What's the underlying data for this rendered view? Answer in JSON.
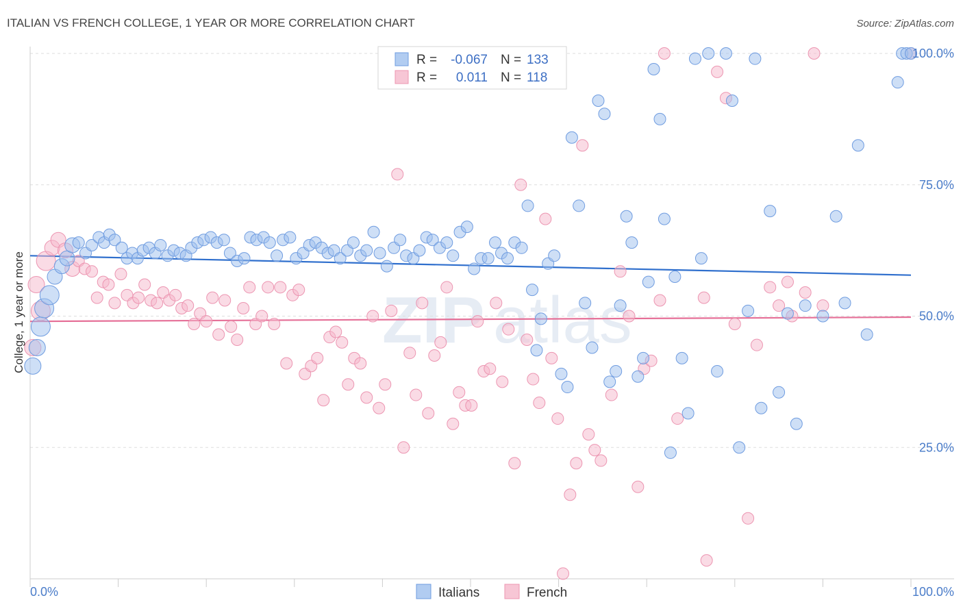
{
  "title": "ITALIAN VS FRENCH COLLEGE, 1 YEAR OR MORE CORRELATION CHART",
  "source": "Source: ZipAtlas.com",
  "watermark": {
    "zip": "ZIP",
    "atlas": "atlas"
  },
  "colors": {
    "italians_fill": "#9dbfee",
    "italians_stroke": "#6f9ce0",
    "italians_line": "#2f6fcd",
    "french_fill": "#f5b8cb",
    "french_stroke": "#ec95b1",
    "french_line": "#e56f97",
    "grid": "#dddddd",
    "axis_label": "#4a7cc9"
  },
  "legend_top": {
    "rows": [
      {
        "r_label": "R =",
        "r_value": "-0.067",
        "n_label": "N =",
        "n_value": "133"
      },
      {
        "r_label": "R =",
        "r_value": "0.011",
        "n_label": "N =",
        "n_value": "118"
      }
    ]
  },
  "chart_data": {
    "type": "scatter",
    "title": "ITALIAN VS FRENCH COLLEGE, 1 YEAR OR MORE CORRELATION CHART",
    "xlabel": "",
    "ylabel": "College, 1 year or more",
    "xlim": [
      0,
      100
    ],
    "ylim": [
      0,
      100
    ],
    "x_tick_labels": [
      "0.0%",
      "100.0%"
    ],
    "y_ticks": [
      25,
      50,
      75,
      100
    ],
    "y_tick_labels": [
      "25.0%",
      "50.0%",
      "75.0%",
      "100.0%"
    ],
    "series": [
      {
        "name": "Italians",
        "R": -0.067,
        "N": 133,
        "trend": {
          "y_at_0": 61.5,
          "y_at_100": 57.8
        },
        "points": [
          [
            0.3,
            40.5
          ],
          [
            0.8,
            44
          ],
          [
            1.2,
            48
          ],
          [
            1.6,
            51.5
          ],
          [
            2.2,
            54
          ],
          [
            2.8,
            57.5
          ],
          [
            3.6,
            59.5
          ],
          [
            4.2,
            61
          ],
          [
            4.8,
            63.5
          ],
          [
            5.5,
            64
          ],
          [
            6.3,
            62
          ],
          [
            7,
            63.5
          ],
          [
            7.8,
            65
          ],
          [
            8.4,
            64
          ],
          [
            9,
            65.5
          ],
          [
            9.6,
            64.5
          ],
          [
            10.4,
            63
          ],
          [
            11,
            61
          ],
          [
            11.6,
            62
          ],
          [
            12.2,
            61
          ],
          [
            12.8,
            62.5
          ],
          [
            13.5,
            63
          ],
          [
            14.2,
            62
          ],
          [
            14.8,
            63.5
          ],
          [
            15.6,
            61.5
          ],
          [
            16.3,
            62.5
          ],
          [
            17,
            62
          ],
          [
            17.7,
            61.5
          ],
          [
            18.3,
            63
          ],
          [
            19,
            64
          ],
          [
            19.7,
            64.5
          ],
          [
            20.5,
            65
          ],
          [
            21.2,
            64
          ],
          [
            22,
            64.5
          ],
          [
            22.7,
            62
          ],
          [
            23.5,
            60.5
          ],
          [
            24.3,
            61
          ],
          [
            25,
            65
          ],
          [
            25.7,
            64.5
          ],
          [
            26.5,
            65
          ],
          [
            27.2,
            64
          ],
          [
            28,
            61.5
          ],
          [
            28.7,
            64.5
          ],
          [
            29.5,
            65
          ],
          [
            30.2,
            61
          ],
          [
            31,
            62
          ],
          [
            31.7,
            63.5
          ],
          [
            32.4,
            64
          ],
          [
            33.1,
            63
          ],
          [
            33.8,
            62
          ],
          [
            34.5,
            62.5
          ],
          [
            35.2,
            61
          ],
          [
            36,
            62.5
          ],
          [
            36.7,
            64
          ],
          [
            37.5,
            61.5
          ],
          [
            38.2,
            62.5
          ],
          [
            39,
            66
          ],
          [
            39.7,
            62
          ],
          [
            40.5,
            59.5
          ],
          [
            41.3,
            63
          ],
          [
            42,
            64.5
          ],
          [
            42.7,
            61.5
          ],
          [
            43.5,
            61
          ],
          [
            44.2,
            62.5
          ],
          [
            45,
            65
          ],
          [
            45.7,
            64.5
          ],
          [
            46.5,
            63
          ],
          [
            47.3,
            64
          ],
          [
            48,
            61.5
          ],
          [
            48.8,
            66
          ],
          [
            49.6,
            67
          ],
          [
            50.4,
            59
          ],
          [
            51.2,
            61
          ],
          [
            52,
            61
          ],
          [
            52.8,
            64
          ],
          [
            53.5,
            62
          ],
          [
            54.2,
            61
          ],
          [
            55,
            64
          ],
          [
            55.8,
            63
          ],
          [
            56.5,
            71
          ],
          [
            57,
            55
          ],
          [
            57.5,
            43.5
          ],
          [
            58,
            49.5
          ],
          [
            58.8,
            60
          ],
          [
            59.5,
            61.5
          ],
          [
            60.3,
            39
          ],
          [
            61,
            36.5
          ],
          [
            61.5,
            84
          ],
          [
            62.3,
            71
          ],
          [
            63,
            52.5
          ],
          [
            63.8,
            44
          ],
          [
            64.5,
            91
          ],
          [
            65.2,
            88.5
          ],
          [
            65.8,
            37.5
          ],
          [
            66.5,
            39.5
          ],
          [
            67,
            52
          ],
          [
            67.7,
            69
          ],
          [
            68.3,
            64
          ],
          [
            69,
            38.5
          ],
          [
            69.6,
            42
          ],
          [
            70.2,
            56.5
          ],
          [
            70.8,
            97
          ],
          [
            71.5,
            87.5
          ],
          [
            72,
            68.5
          ],
          [
            72.7,
            24
          ],
          [
            73.2,
            57.5
          ],
          [
            74,
            42
          ],
          [
            74.7,
            31.5
          ],
          [
            75.5,
            99
          ],
          [
            76.2,
            61
          ],
          [
            77,
            100
          ],
          [
            78,
            39.5
          ],
          [
            79,
            100
          ],
          [
            79.7,
            91
          ],
          [
            80.5,
            25
          ],
          [
            81.5,
            51
          ],
          [
            82.3,
            99
          ],
          [
            83,
            32.5
          ],
          [
            84,
            70
          ],
          [
            85,
            35.5
          ],
          [
            86,
            50.5
          ],
          [
            87,
            29.5
          ],
          [
            88,
            52
          ],
          [
            90,
            50
          ],
          [
            91.5,
            69
          ],
          [
            92.5,
            52.5
          ],
          [
            94,
            82.5
          ],
          [
            95,
            46.5
          ],
          [
            98.5,
            94.5
          ],
          [
            99,
            100
          ],
          [
            99.5,
            100
          ],
          [
            100,
            100
          ]
        ]
      },
      {
        "name": "French",
        "R": 0.011,
        "N": 118,
        "trend": {
          "y_at_0": 49.0,
          "y_at_100": 49.8
        },
        "points": [
          [
            0.3,
            44
          ],
          [
            0.7,
            56
          ],
          [
            1.2,
            51
          ],
          [
            1.8,
            60.5
          ],
          [
            2.5,
            63
          ],
          [
            3.2,
            64.5
          ],
          [
            4,
            62.5
          ],
          [
            4.8,
            59
          ],
          [
            5.5,
            60.5
          ],
          [
            6.2,
            59
          ],
          [
            7,
            58.5
          ],
          [
            7.6,
            53.5
          ],
          [
            8.3,
            56.5
          ],
          [
            8.9,
            56
          ],
          [
            9.6,
            52.5
          ],
          [
            10.3,
            58
          ],
          [
            11,
            54
          ],
          [
            11.7,
            52.5
          ],
          [
            12.3,
            53.5
          ],
          [
            13,
            56
          ],
          [
            13.7,
            53
          ],
          [
            14.4,
            52.5
          ],
          [
            15.1,
            54.5
          ],
          [
            15.8,
            53
          ],
          [
            16.5,
            54
          ],
          [
            17.2,
            51.5
          ],
          [
            17.9,
            52
          ],
          [
            18.6,
            48.5
          ],
          [
            19.3,
            50.5
          ],
          [
            20,
            49
          ],
          [
            20.7,
            53.5
          ],
          [
            21.4,
            46.5
          ],
          [
            22.1,
            53
          ],
          [
            22.8,
            48
          ],
          [
            23.5,
            45.5
          ],
          [
            24.2,
            51.5
          ],
          [
            24.9,
            55.5
          ],
          [
            25.6,
            48.5
          ],
          [
            26.3,
            50
          ],
          [
            27,
            55.5
          ],
          [
            27.7,
            48.5
          ],
          [
            28.4,
            55.5
          ],
          [
            29.1,
            41
          ],
          [
            29.8,
            54
          ],
          [
            30.5,
            55
          ],
          [
            31.2,
            39
          ],
          [
            31.9,
            40.5
          ],
          [
            32.6,
            42
          ],
          [
            33.3,
            34
          ],
          [
            34,
            46
          ],
          [
            34.7,
            47
          ],
          [
            35.4,
            45
          ],
          [
            36.1,
            37
          ],
          [
            36.8,
            42
          ],
          [
            37.5,
            41
          ],
          [
            38.2,
            34.5
          ],
          [
            38.9,
            50
          ],
          [
            39.6,
            32.5
          ],
          [
            40.3,
            37
          ],
          [
            41,
            51
          ],
          [
            41.7,
            77
          ],
          [
            42.4,
            25
          ],
          [
            43.1,
            43
          ],
          [
            43.8,
            35
          ],
          [
            44.5,
            52.5
          ],
          [
            45.2,
            31.5
          ],
          [
            45.9,
            42.5
          ],
          [
            46.6,
            45
          ],
          [
            47.3,
            55.5
          ],
          [
            48,
            29.5
          ],
          [
            48.7,
            35.5
          ],
          [
            49.4,
            33
          ],
          [
            50.1,
            33
          ],
          [
            50.8,
            49
          ],
          [
            51.5,
            39.5
          ],
          [
            52.2,
            40
          ],
          [
            52.9,
            52.5
          ],
          [
            53.6,
            37.5
          ],
          [
            54.3,
            47.5
          ],
          [
            55,
            22
          ],
          [
            55.7,
            75
          ],
          [
            56.4,
            45.5
          ],
          [
            57.1,
            38
          ],
          [
            57.8,
            33.5
          ],
          [
            58.5,
            68.5
          ],
          [
            59.2,
            42
          ],
          [
            59.9,
            30.5
          ],
          [
            60.5,
            1
          ],
          [
            61.3,
            16
          ],
          [
            62,
            22
          ],
          [
            62.7,
            82.5
          ],
          [
            63.4,
            27.5
          ],
          [
            64.1,
            24.5
          ],
          [
            64.8,
            22.5
          ],
          [
            66,
            35
          ],
          [
            67,
            58.5
          ],
          [
            68,
            50
          ],
          [
            69,
            17.5
          ],
          [
            69.7,
            40
          ],
          [
            70.5,
            41.5
          ],
          [
            71.5,
            53
          ],
          [
            72,
            100
          ],
          [
            73.5,
            30.5
          ],
          [
            76.5,
            53.5
          ],
          [
            76.8,
            3.5
          ],
          [
            78,
            96.5
          ],
          [
            79,
            91.5
          ],
          [
            80,
            48.5
          ],
          [
            81.5,
            11.5
          ],
          [
            82.5,
            44.5
          ],
          [
            84,
            55.5
          ],
          [
            85,
            52
          ],
          [
            86,
            56.5
          ],
          [
            86.5,
            50
          ],
          [
            88,
            54.5
          ],
          [
            89,
            100
          ],
          [
            90,
            52
          ],
          [
            100,
            100
          ]
        ]
      }
    ]
  },
  "legend_bottom": {
    "items": [
      "Italians",
      "French"
    ]
  }
}
